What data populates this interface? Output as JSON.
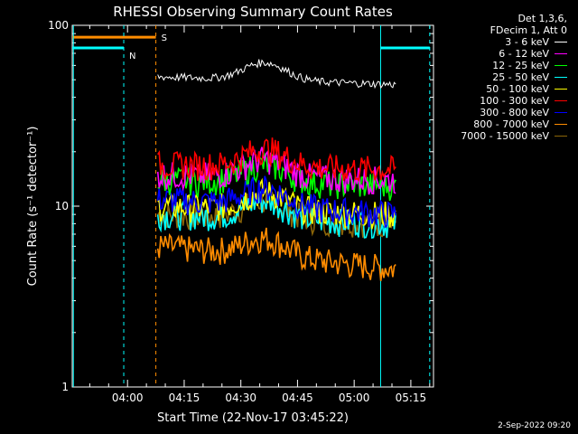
{
  "chart_data": {
    "type": "line",
    "title": "RHESSI Observing Summary Count Rates",
    "xlabel": "Start Time (22-Nov-17 03:45:22)",
    "ylabel": "Count Rate (s⁻¹ detector⁻¹)",
    "x_ticks": [
      "04:00",
      "04:15",
      "04:30",
      "04:45",
      "05:00",
      "05:15"
    ],
    "y_ticks": [
      "1",
      "10",
      "100"
    ],
    "y_scale": "log",
    "ylim": [
      1,
      100
    ],
    "xlim": [
      "03:45:22",
      "05:21:00"
    ],
    "data_interval": [
      "04:08",
      "05:11"
    ],
    "series": [
      {
        "name": "3 - 6 keV",
        "color": "#ffffff",
        "values_start_end": [
          52,
          47
        ]
      },
      {
        "name": "6 - 12 keV",
        "color": "#ff00ff",
        "values_start_end": [
          15,
          14
        ]
      },
      {
        "name": "12 - 25 keV",
        "color": "#00ff00",
        "values_start_end": [
          14,
          13
        ]
      },
      {
        "name": "25 - 50 keV",
        "color": "#00ffff",
        "values_start_end": [
          9,
          8
        ]
      },
      {
        "name": "50 - 100 keV",
        "color": "#ffff00",
        "values_start_end": [
          10,
          9
        ]
      },
      {
        "name": "100 - 300 keV",
        "color": "#ff0000",
        "values_start_end": [
          17,
          16
        ]
      },
      {
        "name": "300 - 800 keV",
        "color": "#0000ff",
        "values_start_end": [
          11,
          9
        ]
      },
      {
        "name": "800 - 7000 keV",
        "color": "#ff8c00",
        "values_start_end": [
          6,
          4.5
        ]
      },
      {
        "name": "7000 - 15000 keV",
        "color": "#8b6508",
        "values_start_end": [
          9,
          8
        ]
      }
    ],
    "annotations": {
      "saa_label": "S",
      "night_label": "N",
      "saa_color": "#ff8c00",
      "night_color": "#00ffff"
    }
  },
  "legend": {
    "header_lines": [
      "Det 1,3,6,",
      "FDecim 1, Att 0"
    ]
  },
  "footer_date": "2-Sep-2022 09:20"
}
